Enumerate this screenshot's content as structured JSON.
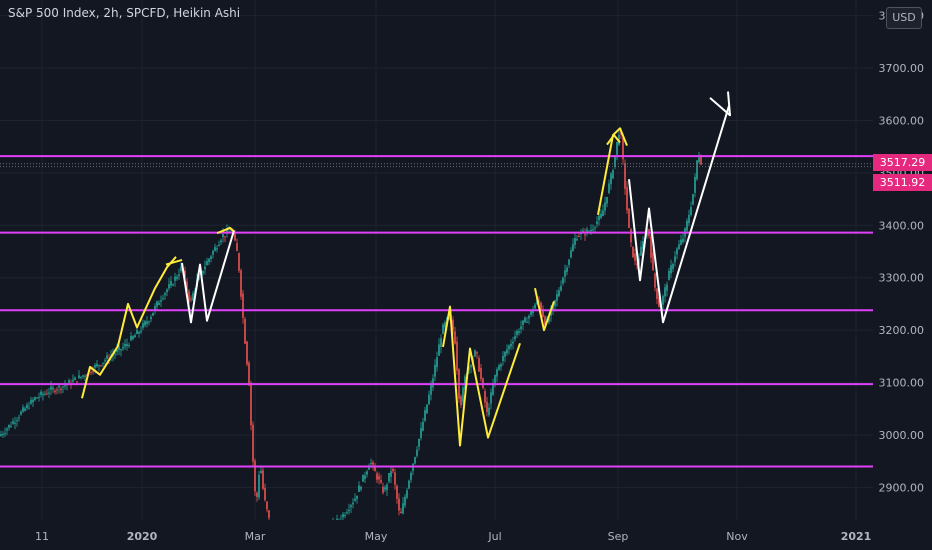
{
  "header": {
    "title": "S&P 500 Index, 2h, SPCFD, Heikin Ashi",
    "currency": "USD"
  },
  "price_badges": [
    "3517.29",
    "3511.92"
  ],
  "colors": {
    "background": "#131722",
    "grid": "#1f2330",
    "axis_text": "#b2b5be",
    "bull_candle": "#26a69a",
    "bear_candle": "#ef5350",
    "horizontal_level": "#e040fb",
    "yellow_drawing": "#ffeb3b",
    "white_drawing": "#ffffff",
    "price_badge": "#e5297f"
  },
  "chart_data": {
    "type": "candlestick",
    "title": "S&P 500 Index, 2h, SPCFD, Heikin Ashi",
    "ylim": [
      2815,
      3845
    ],
    "y_ticks": [
      "2900.00",
      "3000.00",
      "3100.00",
      "3200.00",
      "3300.00",
      "3400.00",
      "3500.00",
      "3600.00",
      "3700.00",
      "3800.00"
    ],
    "x_ticks": [
      "11",
      "2020",
      "Mar",
      "May",
      "Jul",
      "Sep",
      "Nov",
      "2021"
    ],
    "grid": true,
    "horizontal_levels": [
      3532,
      3386,
      3238,
      3097,
      2940
    ],
    "current_price_lines": [
      3517.29,
      3511.92
    ],
    "price_path": [
      [
        0,
        3000
      ],
      [
        8,
        3015
      ],
      [
        20,
        3040
      ],
      [
        35,
        3070
      ],
      [
        50,
        3085
      ],
      [
        65,
        3095
      ],
      [
        80,
        3110
      ],
      [
        95,
        3130
      ],
      [
        110,
        3150
      ],
      [
        125,
        3170
      ],
      [
        140,
        3200
      ],
      [
        150,
        3225
      ],
      [
        160,
        3260
      ],
      [
        172,
        3290
      ],
      [
        182,
        3320
      ],
      [
        190,
        3250
      ],
      [
        198,
        3300
      ],
      [
        210,
        3340
      ],
      [
        222,
        3380
      ],
      [
        232,
        3390
      ],
      [
        238,
        3340
      ],
      [
        244,
        3200
      ],
      [
        249,
        3100
      ],
      [
        252,
        2980
      ],
      [
        256,
        2860
      ],
      [
        260,
        2950
      ],
      [
        264,
        2880
      ],
      [
        270,
        2830
      ],
      [
        278,
        2820
      ],
      [
        330,
        2820
      ],
      [
        340,
        2840
      ],
      [
        355,
        2880
      ],
      [
        370,
        2950
      ],
      [
        384,
        2890
      ],
      [
        392,
        2940
      ],
      [
        400,
        2840
      ],
      [
        410,
        2925
      ],
      [
        420,
        3000
      ],
      [
        432,
        3100
      ],
      [
        442,
        3200
      ],
      [
        450,
        3230
      ],
      [
        455,
        3180
      ],
      [
        460,
        3050
      ],
      [
        466,
        3120
      ],
      [
        476,
        3160
      ],
      [
        487,
        3040
      ],
      [
        496,
        3120
      ],
      [
        506,
        3160
      ],
      [
        518,
        3200
      ],
      [
        530,
        3230
      ],
      [
        538,
        3260
      ],
      [
        546,
        3210
      ],
      [
        556,
        3260
      ],
      [
        566,
        3320
      ],
      [
        576,
        3380
      ],
      [
        590,
        3390
      ],
      [
        602,
        3420
      ],
      [
        612,
        3500
      ],
      [
        620,
        3590
      ],
      [
        626,
        3450
      ],
      [
        630,
        3370
      ],
      [
        636,
        3320
      ],
      [
        642,
        3360
      ],
      [
        648,
        3400
      ],
      [
        654,
        3290
      ],
      [
        660,
        3240
      ],
      [
        668,
        3300
      ],
      [
        676,
        3350
      ],
      [
        684,
        3380
      ],
      [
        690,
        3430
      ],
      [
        694,
        3470
      ],
      [
        698,
        3540
      ],
      [
        702,
        3517
      ]
    ],
    "drawings": {
      "yellow_lines": [
        [
          [
            82,
            3070
          ],
          [
            90,
            3130
          ],
          [
            100,
            3115
          ],
          [
            118,
            3170
          ],
          [
            128,
            3250
          ],
          [
            137,
            3205
          ],
          [
            155,
            3280
          ],
          [
            167,
            3320
          ],
          [
            176,
            3340
          ]
        ],
        [
          [
            166,
            3325
          ],
          [
            182,
            3334
          ]
        ],
        [
          [
            217,
            3385
          ],
          [
            230,
            3395
          ],
          [
            234,
            3388
          ]
        ],
        [
          [
            443,
            3168
          ],
          [
            450,
            3245
          ],
          [
            460,
            2980
          ],
          [
            470,
            3165
          ],
          [
            488,
            2995
          ],
          [
            520,
            3175
          ]
        ],
        [
          [
            535,
            3280
          ],
          [
            544,
            3200
          ],
          [
            554,
            3255
          ]
        ],
        [
          [
            598,
            3420
          ],
          [
            613,
            3572
          ],
          [
            620,
            3585
          ],
          [
            627,
            3552
          ]
        ],
        [
          [
            607,
            3554
          ],
          [
            614,
            3572
          ],
          [
            620,
            3558
          ]
        ]
      ],
      "white_lines": [
        [
          [
            182,
            3328
          ],
          [
            191,
            3215
          ],
          [
            200,
            3325
          ],
          [
            207,
            3218
          ],
          [
            234,
            3390
          ]
        ],
        [
          [
            629,
            3488
          ],
          [
            640,
            3295
          ],
          [
            649,
            3432
          ],
          [
            663,
            3215
          ],
          [
            729,
            3628
          ]
        ],
        [
          [
            710,
            3643
          ],
          [
            730,
            3610
          ],
          [
            728,
            3655
          ]
        ]
      ]
    }
  }
}
